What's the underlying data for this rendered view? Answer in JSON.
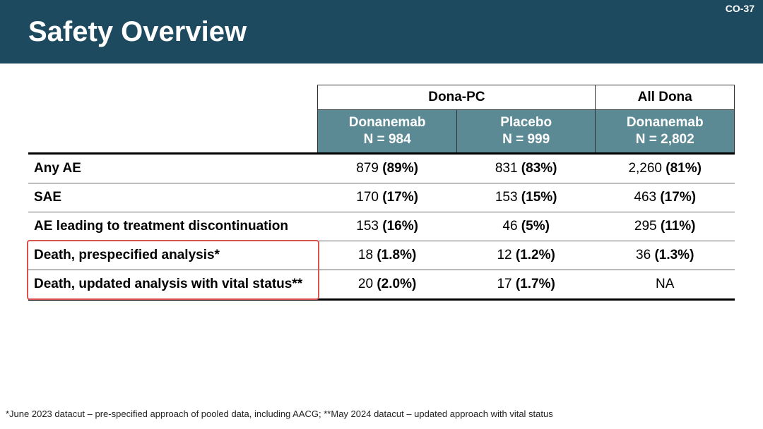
{
  "slide_number": "CO-37",
  "title": "Safety Overview",
  "colors": {
    "header_band": "#1e4a5f",
    "subhead_bg": "#5b8a95",
    "highlight_border": "#d9534f"
  },
  "table": {
    "group_headers": [
      {
        "label": "Dona-PC",
        "span": 2
      },
      {
        "label": "All Dona",
        "span": 1
      }
    ],
    "columns": [
      {
        "name": "Donanemab",
        "n": "N = 984"
      },
      {
        "name": "Placebo",
        "n": "N = 999"
      },
      {
        "name": "Donanemab",
        "n": "N = 2,802"
      }
    ],
    "rows": [
      {
        "label": "Any AE",
        "cells": [
          {
            "n": "879",
            "pct": "(89%)"
          },
          {
            "n": "831",
            "pct": "(83%)"
          },
          {
            "n": "2,260",
            "pct": "(81%)"
          }
        ],
        "highlight": false
      },
      {
        "label": "SAE",
        "cells": [
          {
            "n": "170",
            "pct": "(17%)"
          },
          {
            "n": "153",
            "pct": "(15%)"
          },
          {
            "n": "463",
            "pct": "(17%)"
          }
        ],
        "highlight": false
      },
      {
        "label": "AE leading to treatment discontinuation",
        "cells": [
          {
            "n": "153",
            "pct": "(16%)"
          },
          {
            "n": "46",
            "pct": "(5%)"
          },
          {
            "n": "295",
            "pct": "(11%)"
          }
        ],
        "highlight": false
      },
      {
        "label": "Death, prespecified analysis*",
        "cells": [
          {
            "n": "18",
            "pct": "(1.8%)"
          },
          {
            "n": "12",
            "pct": "(1.2%)"
          },
          {
            "n": "36",
            "pct": "(1.3%)"
          }
        ],
        "highlight": true
      },
      {
        "label": "Death, updated analysis with vital status**",
        "cells": [
          {
            "n": "20",
            "pct": "(2.0%)"
          },
          {
            "n": "17",
            "pct": "(1.7%)"
          },
          {
            "n": "NA",
            "pct": ""
          }
        ],
        "highlight": true
      }
    ]
  },
  "footnote": "*June 2023 datacut – pre-specified approach of pooled data, including AACG; **May 2024 datacut – updated approach with vital status"
}
